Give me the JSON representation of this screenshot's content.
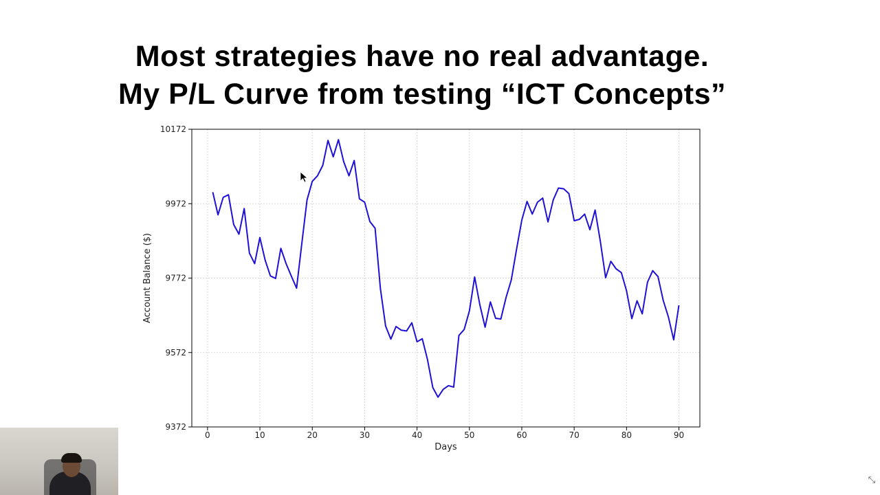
{
  "slide": {
    "title_line1": "Most strategies have no real advantage.",
    "title_line2": "My P/L Curve from testing “ICT Concepts”"
  },
  "chart_data": {
    "type": "line",
    "xlabel": "Days",
    "ylabel": "Account Balance ($)",
    "xlim": [
      -3,
      94
    ],
    "ylim": [
      9372,
      10172
    ],
    "x_ticks": [
      0,
      10,
      20,
      30,
      40,
      50,
      60,
      70,
      80,
      90
    ],
    "y_ticks": [
      9372,
      9572,
      9772,
      9972,
      10172
    ],
    "grid": true,
    "color": "#1f10d6",
    "x": [
      1,
      2,
      3,
      4,
      5,
      6,
      7,
      8,
      9,
      10,
      11,
      12,
      13,
      14,
      15,
      16,
      17,
      18,
      19,
      20,
      21,
      22,
      23,
      24,
      25,
      26,
      27,
      28,
      29,
      30,
      31,
      32,
      33,
      34,
      35,
      36,
      37,
      38,
      39,
      40,
      41,
      42,
      43,
      44,
      45,
      46,
      47,
      48,
      49,
      50,
      51,
      52,
      53,
      54,
      55,
      56,
      57,
      58,
      59,
      60,
      61,
      62,
      63,
      64,
      65,
      66,
      67,
      68,
      69,
      70,
      71,
      72,
      73,
      74,
      75,
      76,
      77,
      78,
      79,
      80,
      81,
      82,
      83,
      84,
      85,
      86,
      87,
      88,
      89,
      90
    ],
    "y": [
      10003,
      9942,
      9989,
      9996,
      9916,
      9890,
      9959,
      9839,
      9811,
      9881,
      9820,
      9778,
      9771,
      9852,
      9811,
      9777,
      9745,
      9865,
      9982,
      10032,
      10047,
      10075,
      10142,
      10098,
      10144,
      10085,
      10047,
      10088,
      9985,
      9976,
      9924,
      9906,
      9744,
      9643,
      9608,
      9642,
      9632,
      9630,
      9652,
      9601,
      9609,
      9553,
      9478,
      9452,
      9473,
      9483,
      9479,
      9618,
      9634,
      9684,
      9775,
      9700,
      9640,
      9708,
      9664,
      9662,
      9720,
      9767,
      9850,
      9928,
      9978,
      9944,
      9976,
      9987,
      9923,
      9982,
      10014,
      10012,
      9999,
      9926,
      9930,
      9944,
      9902,
      9955,
      9871,
      9773,
      9817,
      9797,
      9787,
      9738,
      9663,
      9711,
      9676,
      9761,
      9792,
      9776,
      9712,
      9667,
      9606,
      9699
    ]
  },
  "ui": {
    "cursor_icon": "cursor-arrow-icon",
    "webcam_label": "presenter-webcam",
    "corner_icon": "collapse-icon"
  }
}
